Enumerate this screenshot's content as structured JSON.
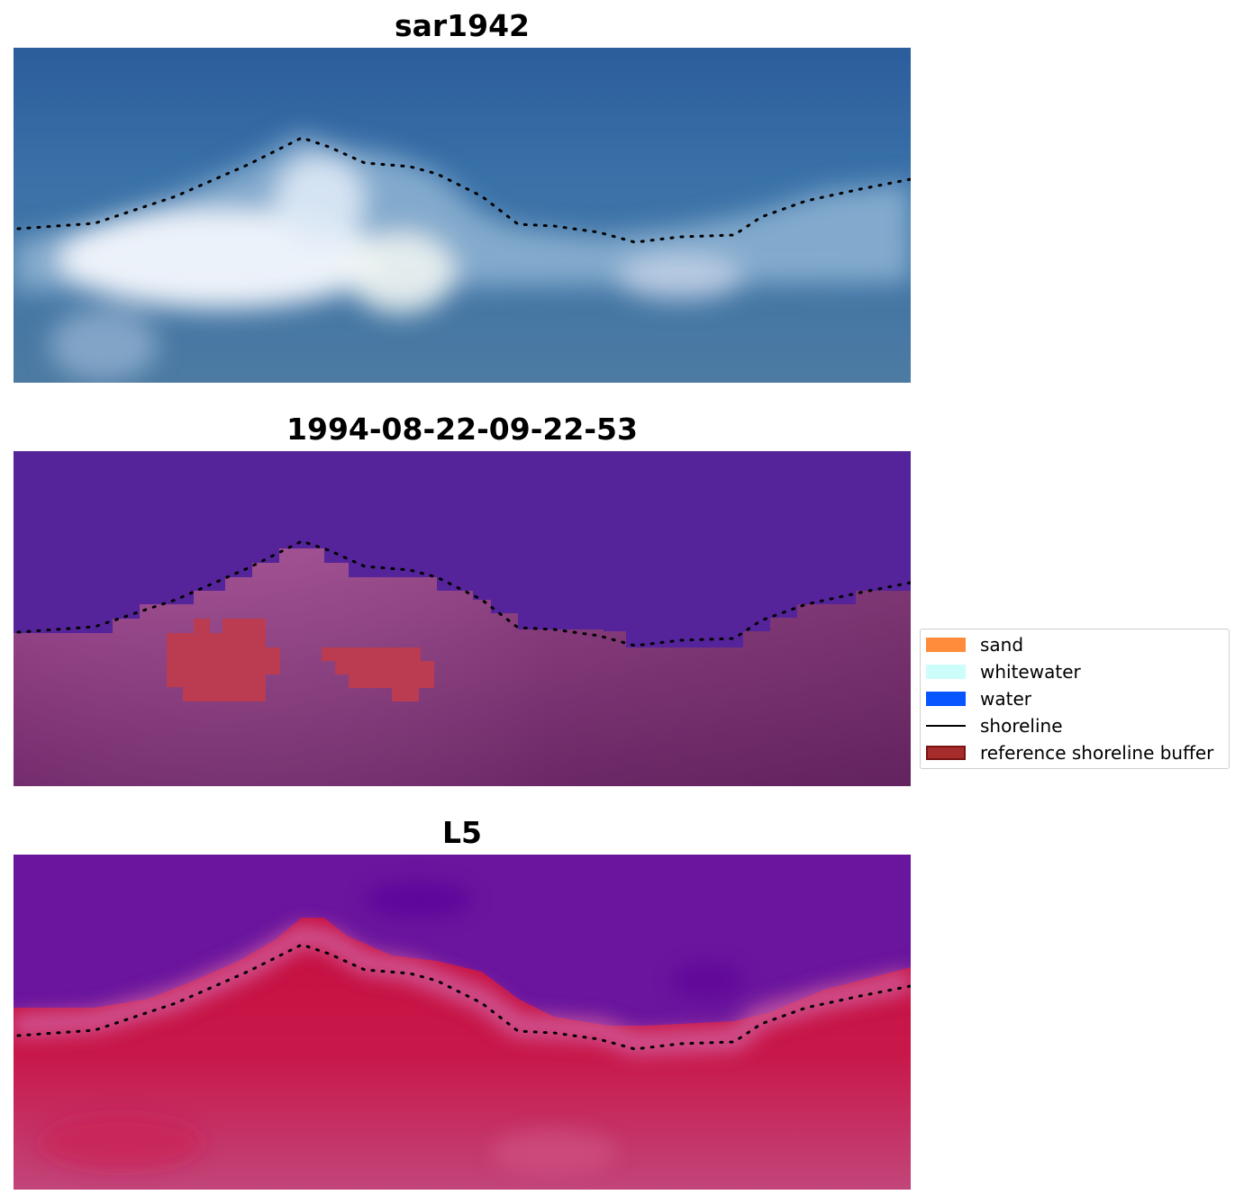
{
  "panels": [
    {
      "title": "sar1942",
      "kind": "rgb"
    },
    {
      "title": "1994-08-22-09-22-53",
      "kind": "classified"
    },
    {
      "title": "L5",
      "kind": "mndwi"
    }
  ],
  "legend": {
    "items": [
      {
        "label": "sand",
        "type": "patch",
        "color": "#ff8c3a"
      },
      {
        "label": "whitewater",
        "type": "patch",
        "color": "#ccfdfb"
      },
      {
        "label": "water",
        "type": "patch",
        "color": "#0755ff"
      },
      {
        "label": "shoreline",
        "type": "line",
        "color": "#000000"
      },
      {
        "label": "reference shoreline buffer",
        "type": "patch",
        "color": "#a62b2b",
        "edge": "#7a1414"
      }
    ]
  },
  "colors": {
    "ocean_blue": "#2c5f9e",
    "whitewater_surf": "#e6f0fa",
    "classified_water": "#55249a",
    "classified_land": "#b2599e",
    "mndwi_water": "#6a159e",
    "mndwi_land": "#c0083a"
  }
}
